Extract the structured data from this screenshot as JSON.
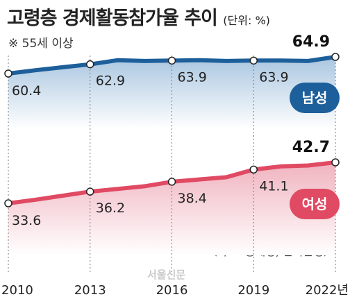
{
  "header": {
    "title": "고령층 경제활동참가율 추이",
    "unit": "(단위: %)",
    "note": "※ 55세 이상"
  },
  "footer": {
    "source": "〈자료: 통계청, 한국은행〉",
    "watermark": "서울신문"
  },
  "colors": {
    "male": "#1d5f9a",
    "male_fill_top": "#a9c6e0",
    "female": "#e04a63",
    "female_fill_top": "#f0b3bf"
  },
  "chart_data": {
    "type": "line",
    "title": "고령층 경제활동참가율 추이",
    "ylabel": "",
    "xlabel": "",
    "x": [
      2010,
      2011,
      2012,
      2013,
      2014,
      2015,
      2016,
      2017,
      2018,
      2019,
      2020,
      2021,
      2022
    ],
    "tick_labels": [
      "2010",
      "2013",
      "2016",
      "2019",
      "2022년"
    ],
    "tick_x": [
      2010,
      2013,
      2016,
      2019,
      2022
    ],
    "series": [
      {
        "name": "남성",
        "values": [
          60.4,
          61.3,
          62.1,
          62.9,
          64.0,
          63.8,
          63.9,
          64.0,
          63.8,
          63.9,
          63.9,
          63.8,
          64.9
        ],
        "labels": [
          {
            "x": 2010,
            "text": "60.4",
            "bold": false
          },
          {
            "x": 2013,
            "text": "62.9",
            "bold": false
          },
          {
            "x": 2016,
            "text": "63.9",
            "bold": false
          },
          {
            "x": 2019,
            "text": "63.9",
            "bold": false
          },
          {
            "x": 2022,
            "text": "64.9",
            "bold": true
          }
        ]
      },
      {
        "name": "여성",
        "values": [
          33.6,
          34.4,
          35.3,
          36.2,
          36.8,
          37.4,
          38.4,
          38.9,
          39.4,
          41.1,
          41.8,
          42.0,
          42.7
        ],
        "labels": [
          {
            "x": 2010,
            "text": "33.6",
            "bold": false
          },
          {
            "x": 2013,
            "text": "36.2",
            "bold": false
          },
          {
            "x": 2016,
            "text": "38.4",
            "bold": false
          },
          {
            "x": 2019,
            "text": "41.1",
            "bold": false
          },
          {
            "x": 2022,
            "text": "42.7",
            "bold": true
          }
        ]
      }
    ],
    "legend": "badges next to series, right side"
  }
}
